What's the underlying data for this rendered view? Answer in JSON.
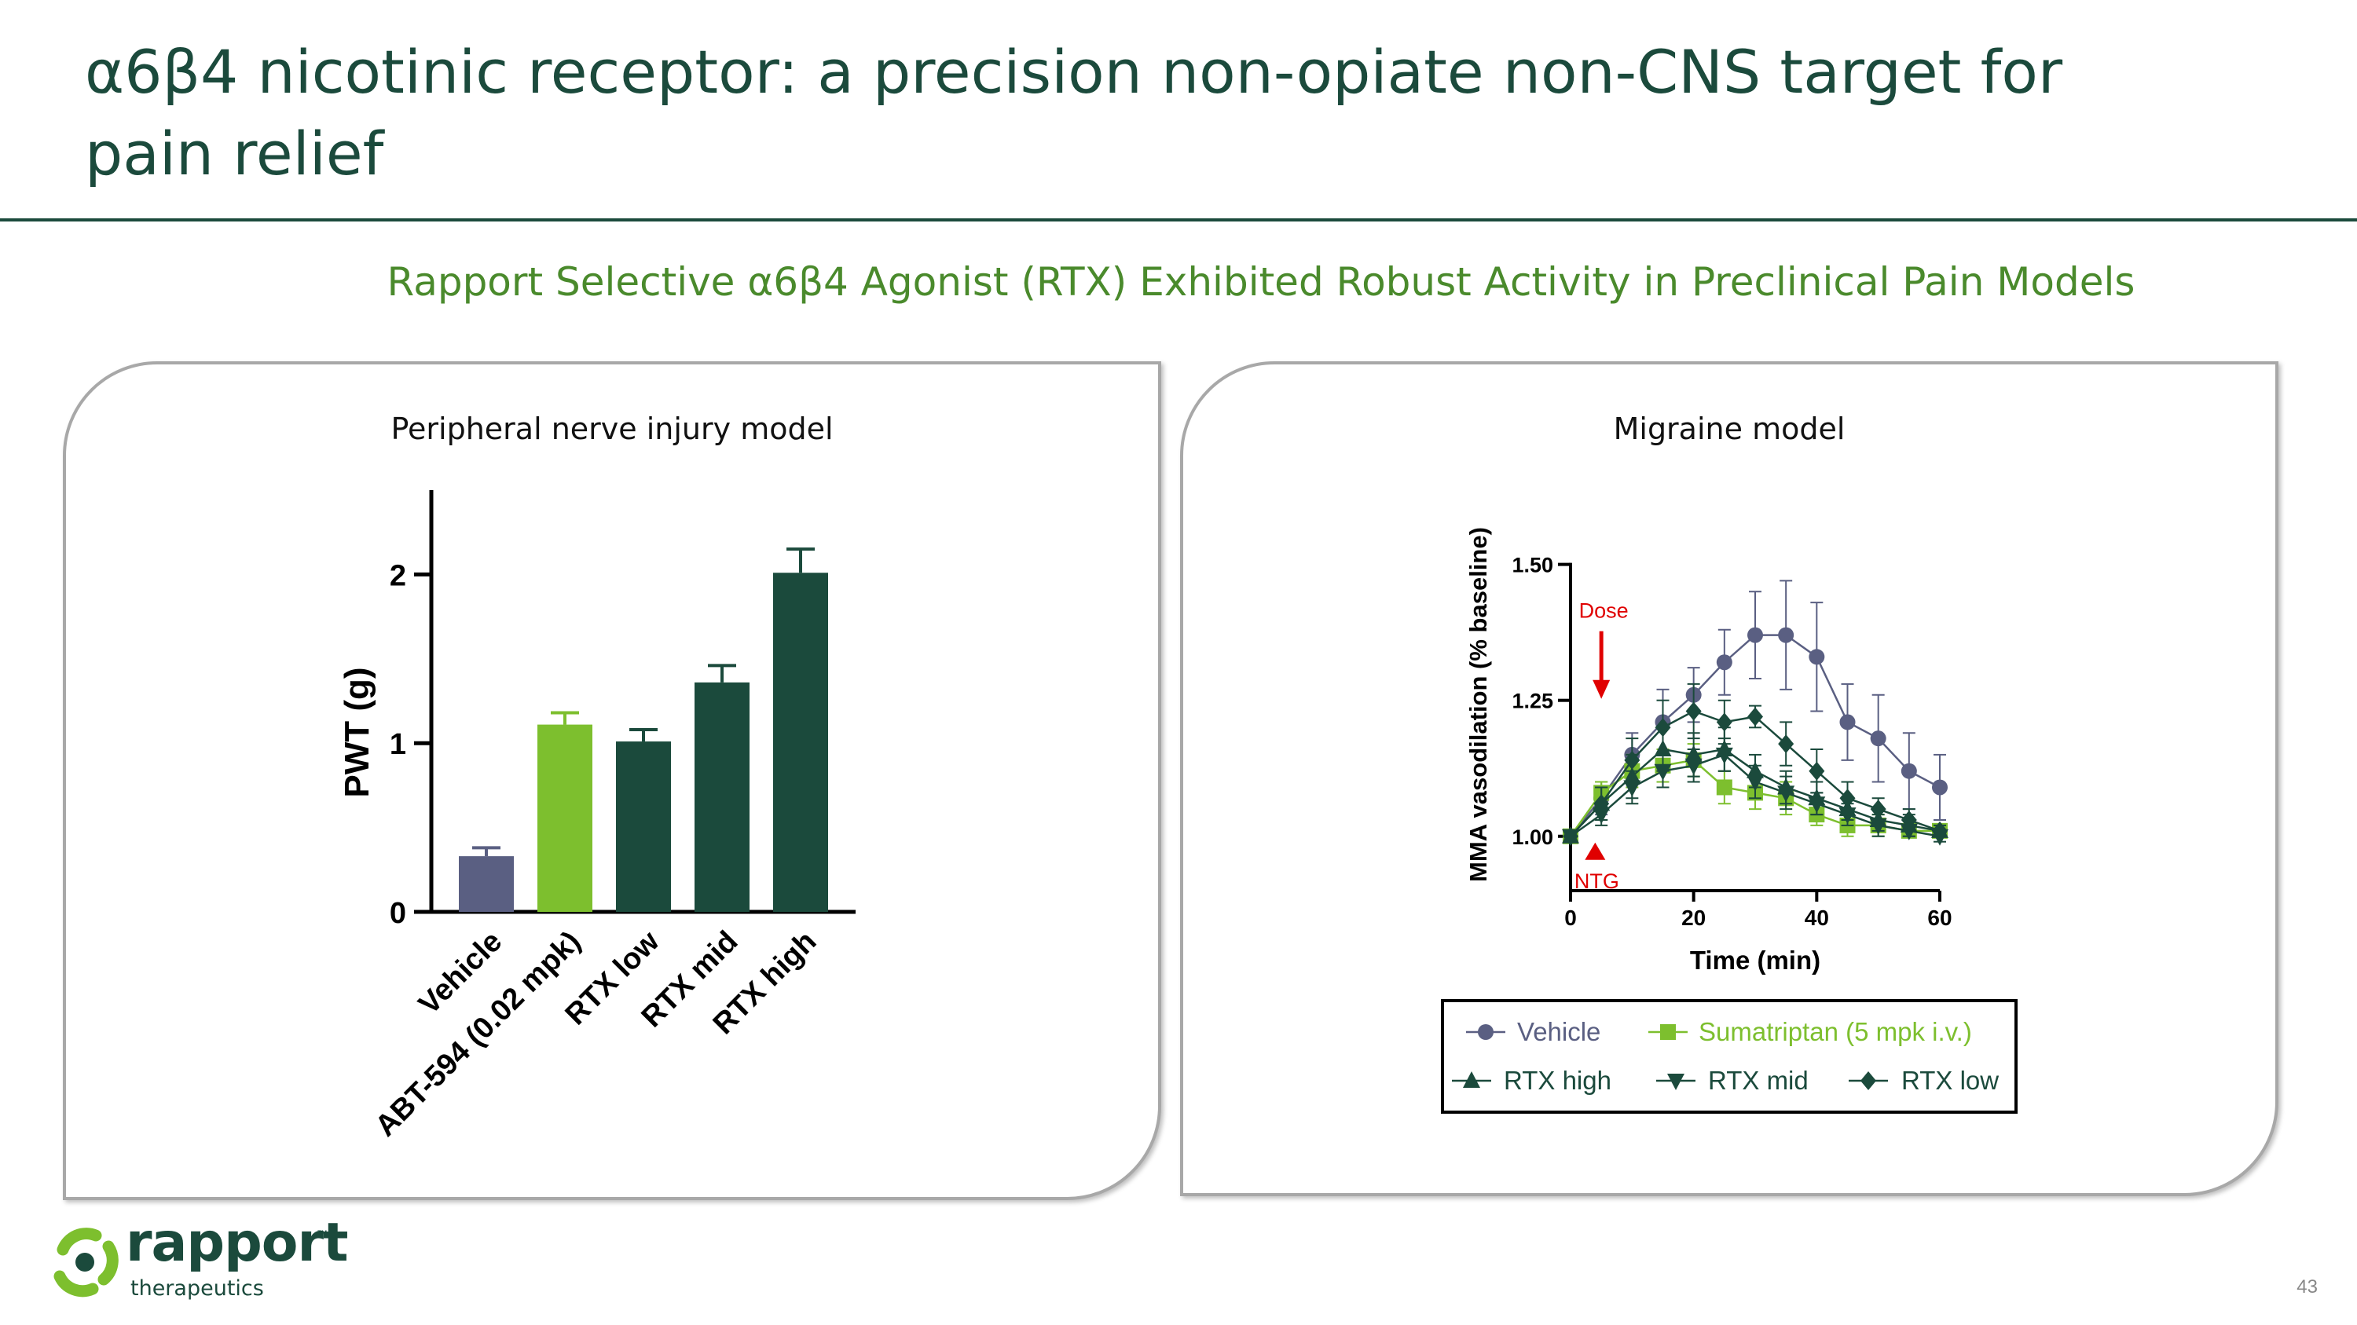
{
  "slide": {
    "title": "α6β4 nicotinic receptor: a precision non-opiate non-CNS target for pain relief",
    "subtitle": "Rapport Selective α6β4 Agonist (RTX) Exhibited Robust Activity in Preclinical Pain Models",
    "page_number": "43",
    "colors": {
      "title": "#1b4a3c",
      "subtitle": "#4a8a2c",
      "brand_green": "#7dbf2e",
      "dark_green": "#1b4a3c"
    }
  },
  "logo": {
    "name": "rapport",
    "trademark": "™",
    "tagline": "therapeutics",
    "icon": "rapport-logo-icon"
  },
  "chart_data": [
    {
      "type": "bar",
      "title": "Peripheral nerve injury model",
      "categories": [
        "Vehicle",
        "ABT-594 (0.02 mpk)",
        "RTX low",
        "RTX mid",
        "RTX high"
      ],
      "values": [
        0.33,
        1.11,
        1.01,
        1.36,
        2.01
      ],
      "errors": [
        0.05,
        0.07,
        0.07,
        0.1,
        0.14
      ],
      "colors": [
        "#5a5f82",
        "#7dbf2e",
        "#1b4a3c",
        "#1b4a3c",
        "#1b4a3c"
      ],
      "ylabel": "PWT (g)",
      "ylim": [
        0,
        2.5
      ],
      "yticks": [
        0,
        1,
        2
      ],
      "ytick_labels": [
        "0",
        "1",
        "2"
      ]
    },
    {
      "type": "line",
      "title": "Migraine model",
      "xlabel": "Time (min)",
      "ylabel": "MMA vasodilation  (% baseline)",
      "xlim": [
        0,
        60
      ],
      "ylim": [
        0.9,
        1.55
      ],
      "xticks": [
        0,
        20,
        40,
        60
      ],
      "xtick_labels": [
        "0",
        "20",
        "40",
        "60"
      ],
      "yticks": [
        1.0,
        1.25,
        1.5
      ],
      "ytick_labels": [
        "1.00",
        "1.25",
        "1.50"
      ],
      "x": [
        0,
        5,
        10,
        15,
        20,
        25,
        30,
        35,
        40,
        45,
        50,
        55,
        60
      ],
      "annotations": {
        "dose": {
          "label": "Dose",
          "x": 5
        },
        "ntg": {
          "label": "NTG",
          "x": 4
        }
      },
      "legend": {
        "position": "bottom"
      },
      "series": [
        {
          "name": "Vehicle",
          "color": "#5a5f82",
          "marker": "circle",
          "values": [
            1.0,
            1.07,
            1.15,
            1.21,
            1.26,
            1.32,
            1.37,
            1.37,
            1.33,
            1.21,
            1.18,
            1.12,
            1.09
          ],
          "errors": [
            0,
            0.03,
            0.04,
            0.06,
            0.05,
            0.06,
            0.08,
            0.1,
            0.1,
            0.07,
            0.08,
            0.07,
            0.06
          ]
        },
        {
          "name": "Sumatriptan (5 mpk i.v.)",
          "color": "#7dbf2e",
          "marker": "square",
          "values": [
            1.0,
            1.08,
            1.12,
            1.13,
            1.14,
            1.09,
            1.08,
            1.07,
            1.04,
            1.02,
            1.02,
            1.01,
            1.01
          ],
          "errors": [
            0,
            0.02,
            0.03,
            0.03,
            0.03,
            0.03,
            0.03,
            0.03,
            0.02,
            0.02,
            0.02,
            0.01,
            0.01
          ]
        },
        {
          "name": "RTX high",
          "color": "#1b4a3c",
          "marker": "triangle-up",
          "values": [
            1.0,
            1.06,
            1.11,
            1.16,
            1.15,
            1.16,
            1.12,
            1.09,
            1.07,
            1.05,
            1.03,
            1.02,
            1.01
          ],
          "errors": [
            0,
            0.03,
            0.04,
            0.04,
            0.04,
            0.04,
            0.03,
            0.03,
            0.03,
            0.02,
            0.02,
            0.02,
            0.01
          ]
        },
        {
          "name": "RTX mid",
          "color": "#1b4a3c",
          "marker": "triangle-down",
          "values": [
            1.0,
            1.04,
            1.09,
            1.12,
            1.13,
            1.15,
            1.1,
            1.08,
            1.06,
            1.04,
            1.02,
            1.01,
            1.0
          ],
          "errors": [
            0,
            0.02,
            0.03,
            0.03,
            0.03,
            0.03,
            0.03,
            0.03,
            0.02,
            0.02,
            0.02,
            0.01,
            0.01
          ]
        },
        {
          "name": "RTX low",
          "color": "#1b4a3c",
          "marker": "diamond",
          "values": [
            1.0,
            1.06,
            1.14,
            1.2,
            1.23,
            1.21,
            1.22,
            1.17,
            1.12,
            1.07,
            1.05,
            1.03,
            1.01
          ],
          "errors": [
            0,
            0.03,
            0.04,
            0.05,
            0.05,
            0.04,
            0.02,
            0.04,
            0.04,
            0.03,
            0.02,
            0.02,
            0.01
          ]
        }
      ]
    }
  ]
}
